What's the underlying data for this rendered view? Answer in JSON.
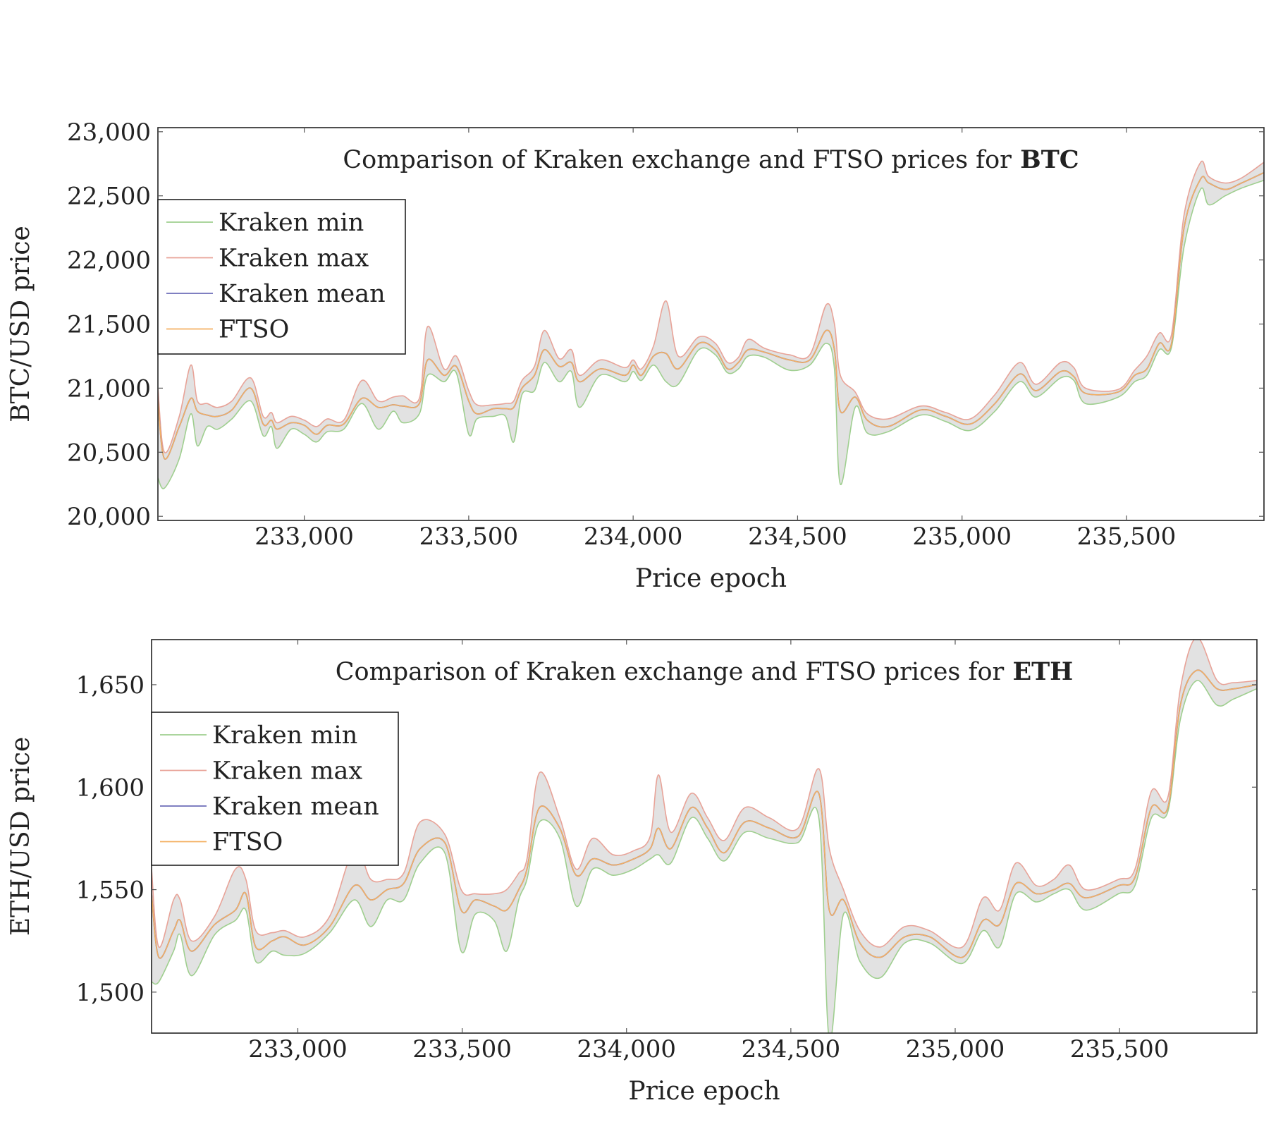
{
  "chart_data": [
    {
      "type": "line",
      "title": "Comparison of Kraken exchange and FTSO prices for",
      "title_bold": "BTC",
      "xlabel": "Price epoch",
      "ylabel": "BTC/USD price",
      "xlim": [
        232555,
        235918
      ],
      "ylim": [
        19968,
        23032
      ],
      "xticks": [
        233000,
        233500,
        234000,
        234500,
        235000,
        235500
      ],
      "xtick_labels": [
        "233,000",
        "233,500",
        "234,000",
        "234,500",
        "235,000",
        "235,500"
      ],
      "yticks": [
        20000,
        20500,
        21000,
        21500,
        22000,
        22500,
        23000
      ],
      "ytick_labels": [
        "20,000",
        "20,500",
        "21,000",
        "21,500",
        "22,000",
        "22,500",
        "23,000"
      ],
      "legend_position": "upper-left",
      "legend": [
        "Kraken min",
        "Kraken max",
        "Kraken mean",
        "FTSO"
      ],
      "columns": [
        "epoch",
        "Kraken min",
        "Kraken mean",
        "Kraken max",
        "FTSO"
      ],
      "rows": [
        [
          232555,
          20300,
          20900,
          21000,
          20900
        ],
        [
          232575,
          20220,
          20450,
          20500,
          20450
        ],
        [
          232620,
          20450,
          20700,
          20780,
          20700
        ],
        [
          232655,
          20800,
          20920,
          21180,
          20920
        ],
        [
          232675,
          20550,
          20820,
          20900,
          20820
        ],
        [
          232705,
          20700,
          20790,
          20880,
          20790
        ],
        [
          232737,
          20680,
          20780,
          20850,
          20780
        ],
        [
          232780,
          20760,
          20830,
          20900,
          20830
        ],
        [
          232837,
          20900,
          21000,
          21080,
          21000
        ],
        [
          232875,
          20630,
          20720,
          20780,
          20720
        ],
        [
          232900,
          20700,
          20750,
          20810,
          20750
        ],
        [
          232917,
          20530,
          20680,
          20730,
          20680
        ],
        [
          232960,
          20680,
          20730,
          20780,
          20730
        ],
        [
          233000,
          20640,
          20710,
          20750,
          20710
        ],
        [
          233037,
          20580,
          20640,
          20700,
          20640
        ],
        [
          233070,
          20660,
          20710,
          20760,
          20710
        ],
        [
          233120,
          20680,
          20720,
          20750,
          20720
        ],
        [
          233175,
          20880,
          20920,
          21060,
          20920
        ],
        [
          233225,
          20680,
          20850,
          20900,
          20850
        ],
        [
          233270,
          20820,
          20870,
          20930,
          20870
        ],
        [
          233300,
          20730,
          20860,
          20940,
          20860
        ],
        [
          233350,
          20800,
          20880,
          20920,
          20880
        ],
        [
          233375,
          21100,
          21220,
          21480,
          21220
        ],
        [
          233425,
          21050,
          21100,
          21150,
          21100
        ],
        [
          233462,
          21120,
          21170,
          21250,
          21170
        ],
        [
          233500,
          20640,
          20900,
          20980,
          20900
        ],
        [
          233525,
          20760,
          20800,
          20870,
          20800
        ],
        [
          233575,
          20780,
          20840,
          20870,
          20840
        ],
        [
          233612,
          20780,
          20840,
          20880,
          20840
        ],
        [
          233637,
          20580,
          20850,
          20900,
          20850
        ],
        [
          233662,
          20950,
          21000,
          21060,
          21000
        ],
        [
          233700,
          20980,
          21100,
          21170,
          21100
        ],
        [
          233730,
          21200,
          21300,
          21450,
          21300
        ],
        [
          233775,
          21050,
          21170,
          21230,
          21170
        ],
        [
          233812,
          21130,
          21200,
          21300,
          21200
        ],
        [
          233837,
          20850,
          21050,
          21100,
          21050
        ],
        [
          233900,
          21100,
          21150,
          21220,
          21150
        ],
        [
          233975,
          21050,
          21100,
          21160,
          21100
        ],
        [
          234000,
          21130,
          21180,
          21220,
          21180
        ],
        [
          234025,
          21060,
          21100,
          21150,
          21100
        ],
        [
          234062,
          21180,
          21250,
          21330,
          21250
        ],
        [
          234100,
          21050,
          21270,
          21680,
          21270
        ],
        [
          234137,
          21030,
          21150,
          21250,
          21150
        ],
        [
          234200,
          21300,
          21350,
          21400,
          21350
        ],
        [
          234250,
          21260,
          21300,
          21350,
          21300
        ],
        [
          234287,
          21120,
          21150,
          21200,
          21150
        ],
        [
          234320,
          21150,
          21200,
          21240,
          21200
        ],
        [
          234350,
          21250,
          21300,
          21380,
          21300
        ],
        [
          234400,
          21240,
          21280,
          21310,
          21280
        ],
        [
          234475,
          21140,
          21220,
          21260,
          21220
        ],
        [
          234537,
          21180,
          21220,
          21260,
          21220
        ],
        [
          234587,
          21350,
          21450,
          21650,
          21450
        ],
        [
          234612,
          21150,
          21300,
          21500,
          21300
        ],
        [
          234630,
          20250,
          20820,
          21100,
          20820
        ],
        [
          234675,
          20850,
          20930,
          20970,
          20930
        ],
        [
          234712,
          20650,
          20750,
          20800,
          20750
        ],
        [
          234775,
          20660,
          20700,
          20760,
          20700
        ],
        [
          234875,
          20790,
          20830,
          20860,
          20830
        ],
        [
          234950,
          20740,
          20780,
          20810,
          20780
        ],
        [
          235025,
          20670,
          20720,
          20760,
          20720
        ],
        [
          235100,
          20820,
          20880,
          20950,
          20880
        ],
        [
          235175,
          21050,
          21110,
          21200,
          21110
        ],
        [
          235225,
          20930,
          20980,
          21030,
          20980
        ],
        [
          235300,
          21080,
          21130,
          21200,
          21130
        ],
        [
          235340,
          21060,
          21090,
          21160,
          21090
        ],
        [
          235375,
          20880,
          20960,
          21000,
          20960
        ],
        [
          235475,
          20930,
          20970,
          20990,
          20970
        ],
        [
          235525,
          21050,
          21100,
          21140,
          21100
        ],
        [
          235562,
          21100,
          21150,
          21250,
          21150
        ],
        [
          235600,
          21300,
          21350,
          21430,
          21350
        ],
        [
          235637,
          21320,
          21350,
          21420,
          21350
        ],
        [
          235675,
          22100,
          22250,
          22350,
          22250
        ],
        [
          235725,
          22550,
          22630,
          22760,
          22630
        ],
        [
          235750,
          22430,
          22600,
          22650,
          22600
        ],
        [
          235800,
          22500,
          22550,
          22600,
          22550
        ],
        [
          235850,
          22560,
          22600,
          22640,
          22600
        ],
        [
          235917,
          22620,
          22680,
          22760,
          22680
        ]
      ]
    },
    {
      "type": "line",
      "title": "Comparison of Kraken exchange and FTSO prices for",
      "title_bold": "ETH",
      "xlabel": "Price epoch",
      "ylabel": "ETH/USD price",
      "xlim": [
        232555,
        235918
      ],
      "ylim": [
        1480,
        1672
      ],
      "xticks": [
        233000,
        233500,
        234000,
        234500,
        235000,
        235500
      ],
      "xtick_labels": [
        "233,000",
        "233,500",
        "234,000",
        "234,500",
        "235,000",
        "235,500"
      ],
      "yticks": [
        1500,
        1550,
        1600,
        1650
      ],
      "ytick_labels": [
        "1,500",
        "1,550",
        "1,600",
        "1,650"
      ],
      "legend_position": "upper-left",
      "legend": [
        "Kraken min",
        "Kraken max",
        "Kraken mean",
        "FTSO"
      ],
      "columns": [
        "epoch",
        "Kraken min",
        "Kraken mean",
        "Kraken max",
        "FTSO"
      ],
      "rows": [
        [
          232555,
          1505,
          1548,
          1560,
          1548
        ],
        [
          232577,
          1505,
          1517,
          1522,
          1517
        ],
        [
          232622,
          1520,
          1530,
          1545,
          1530
        ],
        [
          232642,
          1528,
          1535,
          1545,
          1535
        ],
        [
          232677,
          1508,
          1520,
          1525,
          1520
        ],
        [
          232747,
          1528,
          1533,
          1537,
          1533
        ],
        [
          232810,
          1535,
          1540,
          1560,
          1540
        ],
        [
          232842,
          1540,
          1548,
          1555,
          1548
        ],
        [
          232872,
          1515,
          1522,
          1530,
          1522
        ],
        [
          232922,
          1520,
          1525,
          1529,
          1525
        ],
        [
          232960,
          1518,
          1527,
          1530,
          1527
        ],
        [
          233022,
          1519,
          1523,
          1527,
          1523
        ],
        [
          233097,
          1529,
          1532,
          1537,
          1532
        ],
        [
          233172,
          1545,
          1552,
          1570,
          1552
        ],
        [
          233222,
          1532,
          1545,
          1555,
          1545
        ],
        [
          233272,
          1545,
          1550,
          1555,
          1550
        ],
        [
          233322,
          1545,
          1553,
          1558,
          1553
        ],
        [
          233372,
          1563,
          1570,
          1583,
          1570
        ],
        [
          233447,
          1568,
          1573,
          1577,
          1573
        ],
        [
          233497,
          1520,
          1540,
          1550,
          1540
        ],
        [
          233540,
          1538,
          1545,
          1548,
          1545
        ],
        [
          233597,
          1535,
          1542,
          1548,
          1542
        ],
        [
          233635,
          1520,
          1540,
          1550,
          1540
        ],
        [
          233672,
          1545,
          1550,
          1558,
          1550
        ],
        [
          233697,
          1555,
          1560,
          1565,
          1560
        ],
        [
          233735,
          1583,
          1590,
          1607,
          1590
        ],
        [
          233797,
          1575,
          1580,
          1585,
          1580
        ],
        [
          233847,
          1542,
          1557,
          1560,
          1557
        ],
        [
          233897,
          1560,
          1565,
          1575,
          1565
        ],
        [
          233960,
          1557,
          1562,
          1567,
          1562
        ],
        [
          234022,
          1560,
          1565,
          1569,
          1565
        ],
        [
          234072,
          1565,
          1570,
          1576,
          1570
        ],
        [
          234097,
          1567,
          1580,
          1606,
          1580
        ],
        [
          234135,
          1563,
          1570,
          1578,
          1570
        ],
        [
          234197,
          1585,
          1590,
          1597,
          1590
        ],
        [
          234247,
          1575,
          1580,
          1585,
          1580
        ],
        [
          234297,
          1564,
          1568,
          1574,
          1568
        ],
        [
          234360,
          1578,
          1583,
          1590,
          1583
        ],
        [
          234435,
          1575,
          1580,
          1585,
          1580
        ],
        [
          234522,
          1573,
          1576,
          1580,
          1576
        ],
        [
          234585,
          1585,
          1597,
          1609,
          1597
        ],
        [
          234617,
          1477,
          1540,
          1570,
          1540
        ],
        [
          234660,
          1538,
          1545,
          1550,
          1545
        ],
        [
          234710,
          1515,
          1524,
          1530,
          1524
        ],
        [
          234772,
          1507,
          1517,
          1522,
          1517
        ],
        [
          234847,
          1524,
          1527,
          1532,
          1527
        ],
        [
          234922,
          1524,
          1527,
          1530,
          1527
        ],
        [
          235022,
          1514,
          1517,
          1522,
          1517
        ],
        [
          235085,
          1530,
          1535,
          1546,
          1535
        ],
        [
          235135,
          1522,
          1533,
          1540,
          1533
        ],
        [
          235185,
          1548,
          1553,
          1563,
          1553
        ],
        [
          235247,
          1544,
          1548,
          1552,
          1548
        ],
        [
          235300,
          1548,
          1550,
          1555,
          1550
        ],
        [
          235347,
          1550,
          1553,
          1562,
          1553
        ],
        [
          235397,
          1540,
          1546,
          1550,
          1546
        ],
        [
          235497,
          1548,
          1552,
          1555,
          1552
        ],
        [
          235547,
          1552,
          1556,
          1560,
          1556
        ],
        [
          235597,
          1585,
          1590,
          1598,
          1590
        ],
        [
          235647,
          1588,
          1590,
          1595,
          1590
        ],
        [
          235685,
          1633,
          1640,
          1648,
          1640
        ],
        [
          235735,
          1652,
          1657,
          1673,
          1657
        ],
        [
          235797,
          1640,
          1648,
          1652,
          1648
        ],
        [
          235847,
          1643,
          1648,
          1651,
          1648
        ],
        [
          235917,
          1648,
          1650,
          1652,
          1650
        ]
      ]
    }
  ],
  "colors": {
    "kraken_min": "#9fcf8f",
    "kraken_max": "#e8a398",
    "kraken_mean": "#6d6db8",
    "ftso": "#f4b062",
    "band_fill": "#e2e2e2"
  }
}
